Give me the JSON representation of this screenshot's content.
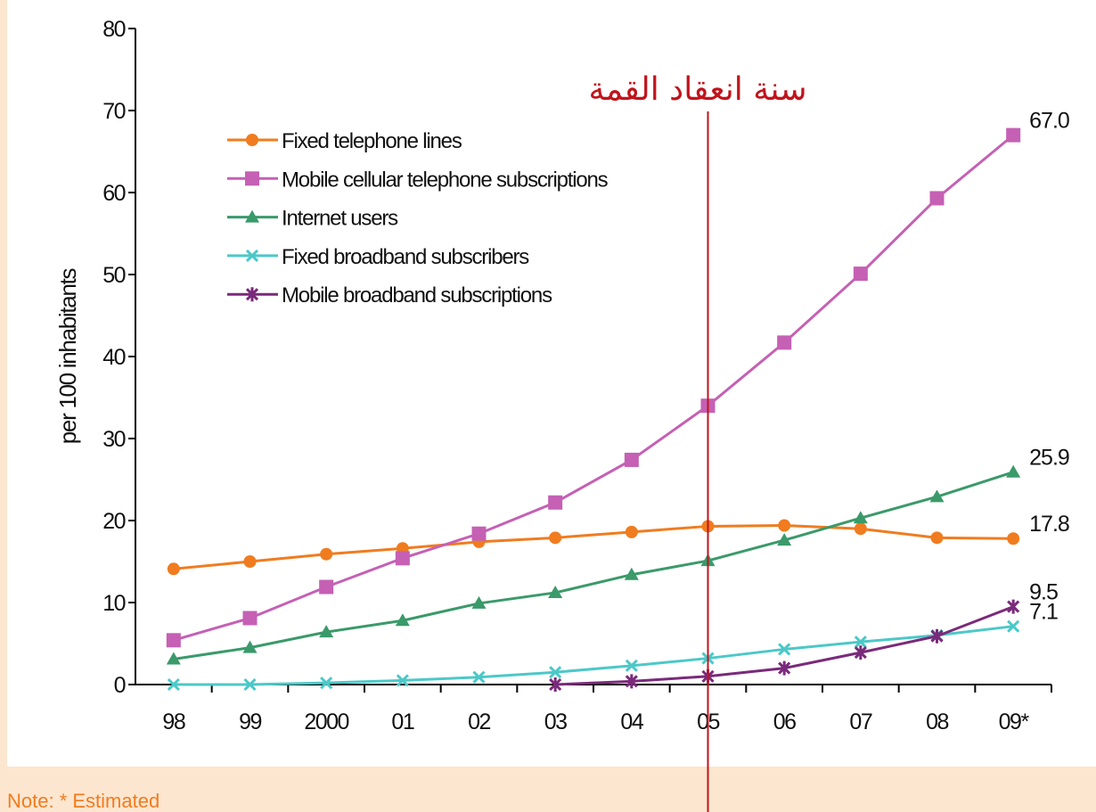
{
  "chart_data": {
    "type": "line",
    "ylabel": "per 100 inhabitants",
    "categories": [
      "98",
      "99",
      "2000",
      "01",
      "02",
      "03",
      "04",
      "05",
      "06",
      "07",
      "08",
      "09*"
    ],
    "series": [
      {
        "name": "Fixed telephone lines",
        "color": "#f07c1f",
        "marker": "circle",
        "values": [
          14.1,
          15.0,
          15.9,
          16.6,
          17.4,
          17.9,
          18.6,
          19.3,
          19.4,
          19.0,
          17.9,
          17.8
        ],
        "value_labels": [
          null,
          null,
          null,
          null,
          null,
          null,
          null,
          null,
          null,
          null,
          null,
          "17.8"
        ]
      },
      {
        "name": "Mobile cellular telephone subscriptions",
        "color": "#c560b4",
        "marker": "square",
        "values": [
          5.4,
          8.1,
          11.9,
          15.4,
          18.4,
          22.2,
          27.4,
          34.0,
          41.7,
          50.1,
          59.3,
          67.0
        ],
        "value_labels": [
          null,
          null,
          null,
          null,
          null,
          null,
          null,
          null,
          null,
          null,
          null,
          "67.0"
        ]
      },
      {
        "name": "Internet users",
        "color": "#3a9a6a",
        "marker": "triangle",
        "values": [
          3.1,
          4.5,
          6.4,
          7.8,
          9.9,
          11.2,
          13.4,
          15.1,
          17.6,
          20.3,
          22.9,
          25.9
        ],
        "value_labels": [
          null,
          null,
          null,
          null,
          null,
          null,
          null,
          null,
          null,
          null,
          null,
          "25.9"
        ]
      },
      {
        "name": "Fixed broadband subscribers",
        "color": "#4cc8c8",
        "marker": "x",
        "values": [
          0,
          0,
          0.2,
          0.5,
          0.9,
          1.5,
          2.3,
          3.2,
          4.3,
          5.2,
          6.0,
          7.1
        ],
        "value_labels": [
          null,
          null,
          null,
          null,
          null,
          null,
          null,
          null,
          null,
          null,
          null,
          "7.1"
        ]
      },
      {
        "name": "Mobile broadband subscriptions",
        "color": "#7a2a7a",
        "marker": "star",
        "values": [
          null,
          null,
          null,
          null,
          null,
          0,
          0.4,
          1.0,
          2.0,
          3.9,
          5.9,
          9.5
        ],
        "value_labels": [
          null,
          null,
          null,
          null,
          null,
          null,
          null,
          null,
          null,
          null,
          null,
          "9.5"
        ]
      }
    ],
    "ylim": [
      0,
      80
    ],
    "yticks": [
      0,
      10,
      20,
      30,
      40,
      50,
      60,
      70,
      80
    ],
    "annotation": {
      "text": "سنة انعقاد القمة",
      "category": "05",
      "color": "#c0141c"
    },
    "note": "Note: * Estimated"
  }
}
